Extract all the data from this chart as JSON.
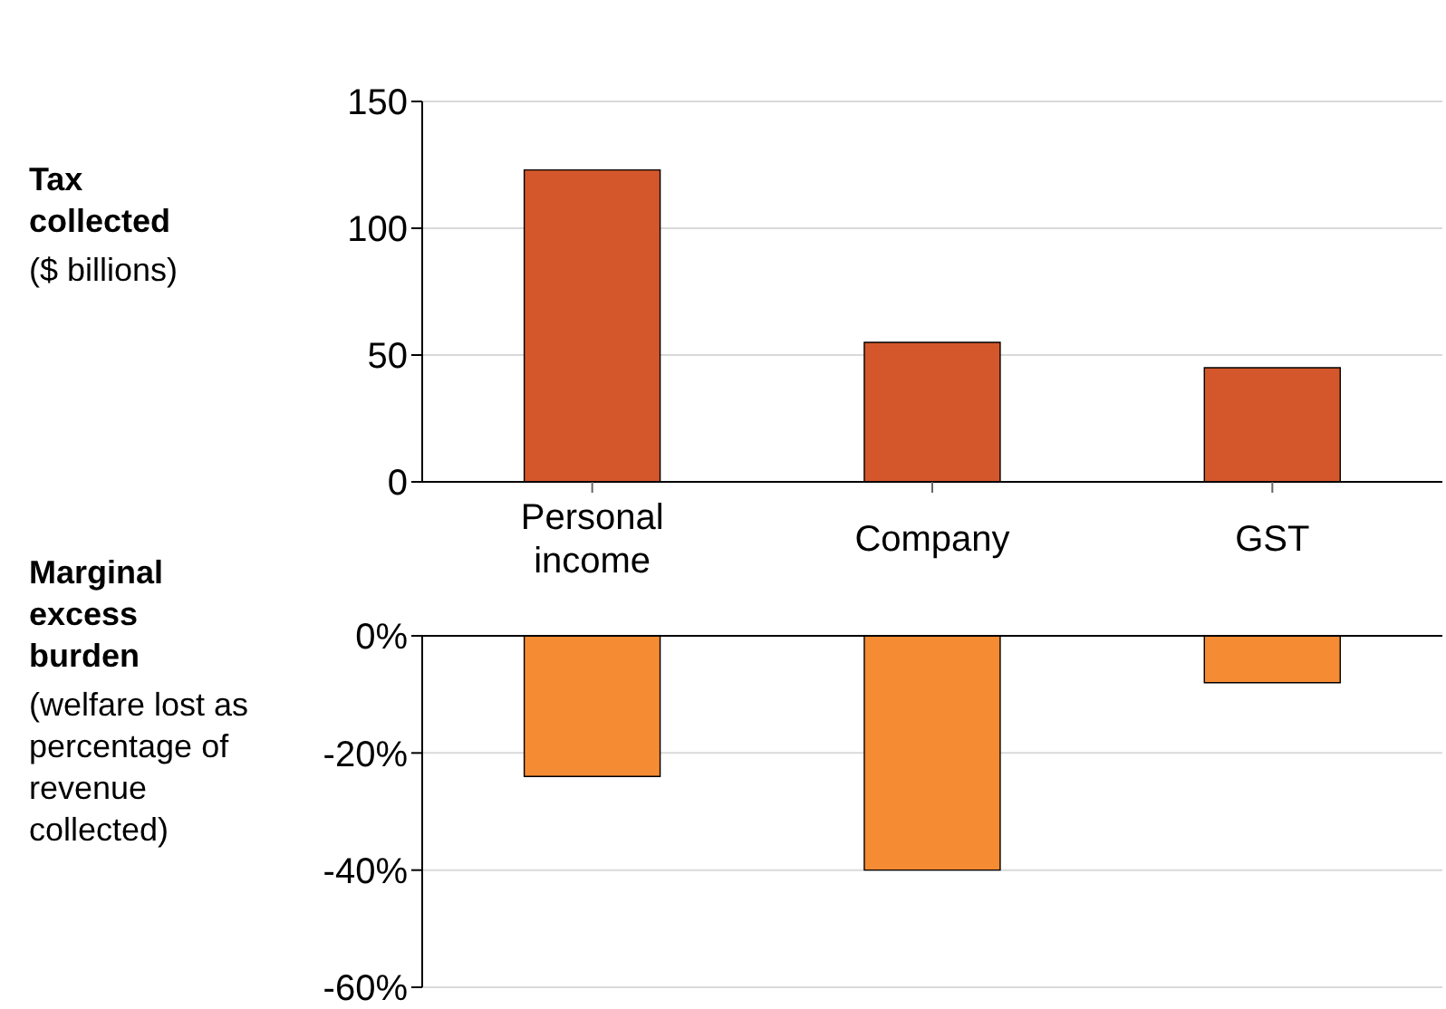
{
  "chart_data": [
    {
      "type": "bar",
      "title": "Tax collected",
      "subtitle": "($ billions)",
      "categories": [
        "Personal income",
        "Company",
        "GST"
      ],
      "series": [
        {
          "color": "#d4572b",
          "values": [
            123,
            55,
            45
          ]
        }
      ],
      "ylim": [
        0,
        150
      ],
      "yticks": [
        0,
        50,
        100,
        150
      ],
      "grid": "y"
    },
    {
      "type": "bar",
      "title": "Marginal excess burden",
      "subtitle": "(welfare lost as percentage of revenue collected)",
      "categories": [
        null,
        null,
        null
      ],
      "series": [
        {
          "color": "#f58b33",
          "values": [
            -24,
            -40,
            -8
          ]
        }
      ],
      "ylim": [
        -60,
        0
      ],
      "yticks": [
        {
          "value": 0,
          "label": "0%"
        },
        {
          "value": -20,
          "label": "-20%"
        },
        {
          "value": -40,
          "label": "-40%"
        },
        {
          "value": -60,
          "label": "-60%"
        }
      ],
      "grid": "y",
      "tick_labels": "y"
    }
  ]
}
